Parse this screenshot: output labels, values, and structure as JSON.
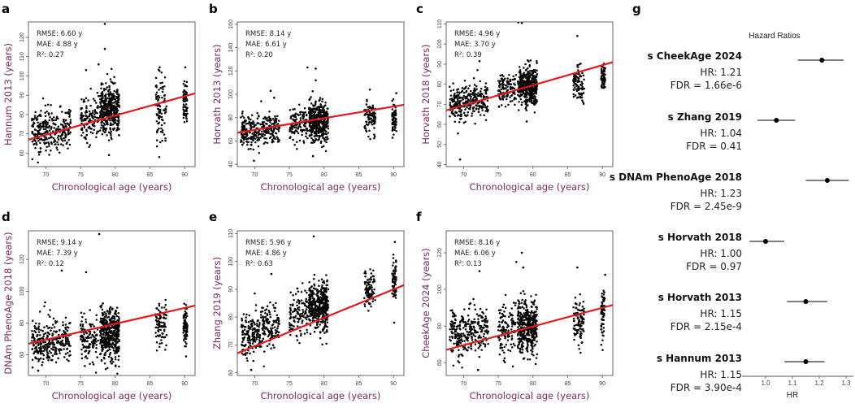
{
  "figure": {
    "point_color": "#000000",
    "fit_line_color": "#e41a1c",
    "axis_title_color": "#7b2a5a"
  },
  "chart_data": [
    {
      "type": "scatter",
      "panel": "a",
      "xlabel": "Chronological age (years)",
      "ylabel": "Hannum 2013 (years)",
      "xlim": [
        67.5,
        91.5
      ],
      "ylim": [
        53,
        128
      ],
      "xticks": [
        70,
        75,
        80,
        85,
        90
      ],
      "yticks": [
        60,
        70,
        80,
        90,
        100,
        110,
        120
      ],
      "stats": [
        "RMSE: 6.60 y",
        "MAE: 4.88 y",
        "R²: 0.27"
      ],
      "fit_line": {
        "x": [
          67.5,
          91.5
        ],
        "y": [
          67,
          91
        ]
      },
      "clusters": [
        {
          "x_range": [
            68,
            70.8
          ],
          "y_mean": 72,
          "y_sd": 5.5,
          "n": 160
        },
        {
          "x_range": [
            70.8,
            73.6
          ],
          "y_mean": 73,
          "y_sd": 5.5,
          "n": 130
        },
        {
          "x_range": [
            75,
            77.6
          ],
          "y_mean": 78,
          "y_sd": 5.5,
          "n": 120
        },
        {
          "x_range": [
            77.8,
            80.6
          ],
          "y_mean": 83,
          "y_sd": 6.5,
          "n": 420
        },
        {
          "x_range": [
            85.8,
            87.4
          ],
          "y_mean": 83,
          "y_sd": 6.5,
          "n": 90
        },
        {
          "x_range": [
            89.8,
            90.4
          ],
          "y_mean": 86,
          "y_sd": 6,
          "n": 70
        }
      ],
      "outliers": [
        [
          78.5,
          127
        ],
        [
          78.5,
          114
        ],
        [
          77.6,
          106
        ],
        [
          75.8,
          103
        ],
        [
          79.1,
          59
        ],
        [
          86.4,
          104.5
        ],
        [
          90.1,
          104.5
        ]
      ]
    },
    {
      "type": "scatter",
      "panel": "b",
      "xlabel": "Chronological age (years)",
      "ylabel": "Horvath 2013 (years)",
      "xlim": [
        67.5,
        91.5
      ],
      "ylim": [
        38,
        162
      ],
      "xticks": [
        70,
        75,
        80,
        85,
        90
      ],
      "yticks": [
        40,
        60,
        80,
        100,
        120,
        140,
        160
      ],
      "stats": [
        "RMSE: 8.14 y",
        "MAE: 6.61 y",
        "R²: 0.20"
      ],
      "fit_line": {
        "x": [
          67.5,
          91.5
        ],
        "y": [
          67,
          91
        ]
      },
      "clusters": [
        {
          "x_range": [
            68,
            70.8
          ],
          "y_mean": 68,
          "y_sd": 7,
          "n": 160
        },
        {
          "x_range": [
            70.8,
            73.6
          ],
          "y_mean": 70,
          "y_sd": 7,
          "n": 130
        },
        {
          "x_range": [
            75,
            77.6
          ],
          "y_mean": 75,
          "y_sd": 7,
          "n": 120
        },
        {
          "x_range": [
            77.8,
            80.6
          ],
          "y_mean": 77,
          "y_sd": 8,
          "n": 420
        },
        {
          "x_range": [
            85.8,
            87.4
          ],
          "y_mean": 79,
          "y_sd": 6.5,
          "n": 90
        },
        {
          "x_range": [
            89.8,
            90.4
          ],
          "y_mean": 80,
          "y_sd": 6,
          "n": 70
        }
      ],
      "outliers": [
        [
          77.6,
          123
        ],
        [
          78.8,
          122
        ],
        [
          78.8,
          112
        ],
        [
          72.3,
          103
        ],
        [
          72.8,
          97
        ],
        [
          69.9,
          43
        ],
        [
          78.4,
          47
        ],
        [
          86.6,
          104
        ],
        [
          90.4,
          101
        ]
      ]
    },
    {
      "type": "scatter",
      "panel": "c",
      "xlabel": "Chronological age (years)",
      "ylabel": "Horvath 2018 (years)",
      "xlim": [
        67.5,
        91.5
      ],
      "ylim": [
        39,
        111
      ],
      "xticks": [
        70,
        75,
        80,
        85,
        90
      ],
      "yticks": [
        40,
        50,
        60,
        70,
        80,
        90,
        100,
        110
      ],
      "stats": [
        "RMSE: 4.96 y",
        "MAE: 3.70 y",
        "R²: 0.39"
      ],
      "fit_line": {
        "x": [
          67.5,
          91.5
        ],
        "y": [
          67,
          91
        ]
      },
      "clusters": [
        {
          "x_range": [
            68,
            70.8
          ],
          "y_mean": 71,
          "y_sd": 4.5,
          "n": 160
        },
        {
          "x_range": [
            70.8,
            73.6
          ],
          "y_mean": 72,
          "y_sd": 4,
          "n": 130
        },
        {
          "x_range": [
            75,
            77.6
          ],
          "y_mean": 77,
          "y_sd": 4,
          "n": 120
        },
        {
          "x_range": [
            77.8,
            80.6
          ],
          "y_mean": 79,
          "y_sd": 4.5,
          "n": 420
        },
        {
          "x_range": [
            85.8,
            87.4
          ],
          "y_mean": 80,
          "y_sd": 4.5,
          "n": 90
        },
        {
          "x_range": [
            89.8,
            90.4
          ],
          "y_mean": 84,
          "y_sd": 3.5,
          "n": 70
        }
      ],
      "outliers": [
        [
          78.4,
          110.5
        ],
        [
          77.9,
          110.8
        ],
        [
          69.5,
          42.5
        ],
        [
          69.2,
          55.5
        ],
        [
          86.4,
          104
        ],
        [
          72.3,
          91.5
        ],
        [
          79.1,
          61.5
        ]
      ]
    },
    {
      "type": "scatter",
      "panel": "d",
      "xlabel": "Chronological age (years)",
      "ylabel": "DNAm PhenoAge 2018 (years)",
      "xlim": [
        67.5,
        91.5
      ],
      "ylim": [
        47,
        138
      ],
      "xticks": [
        70,
        75,
        80,
        85,
        90
      ],
      "yticks": [
        60,
        80,
        100,
        120
      ],
      "stats": [
        "RMSE: 9.14 y",
        "MAE: 7.39 y",
        "R²: 0.12"
      ],
      "fit_line": {
        "x": [
          67.5,
          91.5
        ],
        "y": [
          67,
          91
        ]
      },
      "clusters": [
        {
          "x_range": [
            68,
            70.8
          ],
          "y_mean": 67,
          "y_sd": 6.5,
          "n": 160
        },
        {
          "x_range": [
            70.8,
            73.6
          ],
          "y_mean": 68,
          "y_sd": 6.5,
          "n": 130
        },
        {
          "x_range": [
            75,
            77.6
          ],
          "y_mean": 70,
          "y_sd": 7,
          "n": 120
        },
        {
          "x_range": [
            77.8,
            80.6
          ],
          "y_mean": 73,
          "y_sd": 8,
          "n": 420
        },
        {
          "x_range": [
            85.8,
            87.4
          ],
          "y_mean": 79,
          "y_sd": 6.5,
          "n": 90
        },
        {
          "x_range": [
            89.8,
            90.4
          ],
          "y_mean": 78,
          "y_sd": 7,
          "n": 70
        }
      ],
      "outliers": [
        [
          77.7,
          136
        ],
        [
          72.3,
          113
        ],
        [
          75.8,
          112
        ],
        [
          69.9,
          93
        ],
        [
          68.1,
          52
        ],
        [
          68.9,
          50
        ],
        [
          90.2,
          59
        ]
      ]
    },
    {
      "type": "scatter",
      "panel": "e",
      "xlabel": "Chronological age (years)",
      "ylabel": "Zhang 2019 (years)",
      "xlim": [
        67.5,
        91.5
      ],
      "ylim": [
        59,
        111
      ],
      "xticks": [
        70,
        75,
        80,
        85,
        90
      ],
      "yticks": [
        60,
        70,
        80,
        90,
        100,
        110
      ],
      "stats": [
        "RMSE: 5.96 y",
        "MAE: 4.86 y",
        "R²: 0.63"
      ],
      "fit_line": {
        "x": [
          67.5,
          91.5
        ],
        "y": [
          67,
          91.5
        ]
      },
      "clusters": [
        {
          "x_range": [
            68,
            70.8
          ],
          "y_mean": 73,
          "y_sd": 3.8,
          "n": 160
        },
        {
          "x_range": [
            70.8,
            73.6
          ],
          "y_mean": 76,
          "y_sd": 4,
          "n": 130
        },
        {
          "x_range": [
            75,
            77.6
          ],
          "y_mean": 81,
          "y_sd": 4,
          "n": 120
        },
        {
          "x_range": [
            77.8,
            80.6
          ],
          "y_mean": 84,
          "y_sd": 4.2,
          "n": 420
        },
        {
          "x_range": [
            85.8,
            87.4
          ],
          "y_mean": 89,
          "y_sd": 4,
          "n": 90
        },
        {
          "x_range": [
            89.8,
            90.4
          ],
          "y_mean": 93,
          "y_sd": 3.5,
          "n": 70
        }
      ],
      "outliers": [
        [
          78.5,
          109
        ],
        [
          90.2,
          107
        ],
        [
          72.4,
          95.5
        ],
        [
          70.0,
          88.5
        ],
        [
          69.5,
          61
        ],
        [
          90.1,
          78
        ]
      ]
    },
    {
      "type": "scatter",
      "panel": "f",
      "xlabel": "Chronological age (years)",
      "ylabel": "CheekAge 2024 (years)",
      "xlim": [
        67.5,
        91.5
      ],
      "ylim": [
        53,
        132
      ],
      "xticks": [
        70,
        75,
        80,
        85,
        90
      ],
      "yticks": [
        60,
        80,
        100,
        120
      ],
      "stats": [
        "RMSE: 8.16 y",
        "MAE: 6.06 y",
        "R²: 0.13"
      ],
      "fit_line": {
        "x": [
          67.5,
          91.5
        ],
        "y": [
          67,
          91.5
        ]
      },
      "clusters": [
        {
          "x_range": [
            68,
            70.8
          ],
          "y_mean": 76,
          "y_sd": 6,
          "n": 160
        },
        {
          "x_range": [
            70.8,
            73.6
          ],
          "y_mean": 77,
          "y_sd": 6,
          "n": 130
        },
        {
          "x_range": [
            75,
            77.6
          ],
          "y_mean": 78,
          "y_sd": 7,
          "n": 120
        },
        {
          "x_range": [
            77.8,
            80.6
          ],
          "y_mean": 80,
          "y_sd": 7,
          "n": 420
        },
        {
          "x_range": [
            85.8,
            87.4
          ],
          "y_mean": 83,
          "y_sd": 6,
          "n": 90
        },
        {
          "x_range": [
            89.8,
            90.4
          ],
          "y_mean": 86,
          "y_sd": 6.5,
          "n": 70
        }
      ],
      "outliers": [
        [
          78.4,
          120
        ],
        [
          78.6,
          112
        ],
        [
          77.6,
          115
        ],
        [
          72.3,
          110
        ],
        [
          86.4,
          112
        ],
        [
          72.1,
          56
        ],
        [
          90.4,
          108
        ]
      ]
    },
    {
      "type": "forest",
      "panel": "g",
      "title": "Hazard Ratios",
      "xlabel": "HR",
      "xlim": [
        0.93,
        1.33
      ],
      "xticks": [
        1.0,
        1.1,
        1.2,
        1.3
      ],
      "xtick_labels": [
        "1.0",
        "1.1",
        "1.2",
        "1.3"
      ],
      "rows": [
        {
          "name": "s CheekAge 2024",
          "hr": 1.21,
          "ci": [
            1.12,
            1.29
          ],
          "hr_label": "HR: 1.21",
          "fdr_label": "FDR = 1.66e-6"
        },
        {
          "name": "s Zhang 2019",
          "hr": 1.04,
          "ci": [
            0.97,
            1.11
          ],
          "hr_label": "HR: 1.04",
          "fdr_label": "FDR = 0.41"
        },
        {
          "name": "s DNAm PhenoAge 2018",
          "hr": 1.23,
          "ci": [
            1.15,
            1.31
          ],
          "hr_label": "HR: 1.23",
          "fdr_label": "FDR = 2.45e-9"
        },
        {
          "name": "s Horvath 2018",
          "hr": 1.0,
          "ci": [
            0.94,
            1.07
          ],
          "hr_label": "HR: 1.00",
          "fdr_label": "FDR = 0.97"
        },
        {
          "name": "s Horvath 2013",
          "hr": 1.15,
          "ci": [
            1.08,
            1.23
          ],
          "hr_label": "HR: 1.15",
          "fdr_label": "FDR = 2.15e-4"
        },
        {
          "name": "s Hannum 2013",
          "hr": 1.15,
          "ci": [
            1.07,
            1.22
          ],
          "hr_label": "HR: 1.15",
          "fdr_label": "FDR = 3.90e-4"
        }
      ]
    }
  ]
}
